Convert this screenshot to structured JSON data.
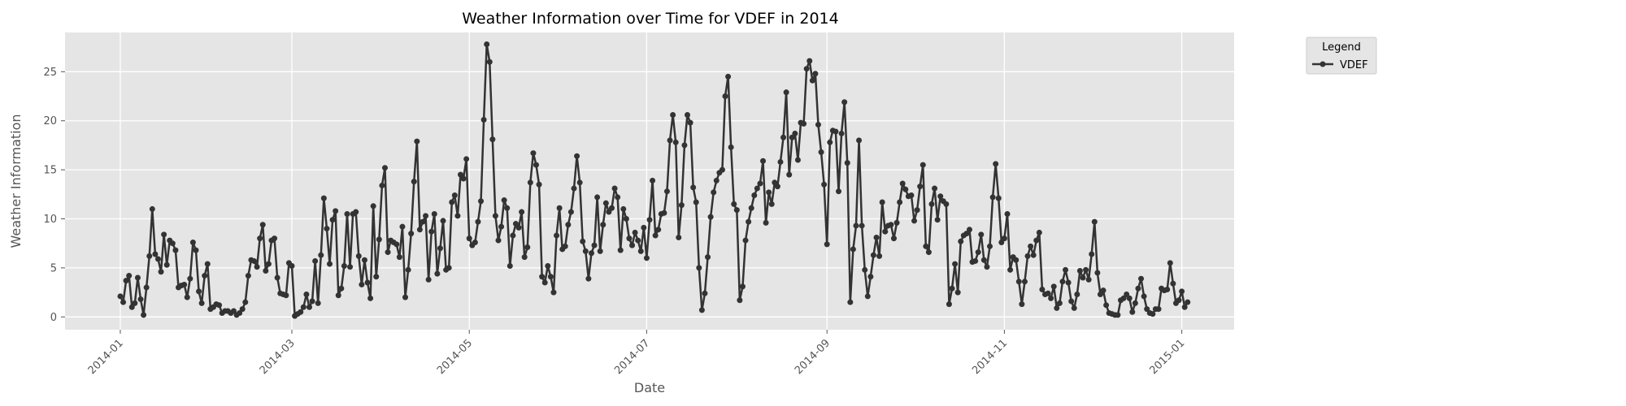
{
  "chart_data": {
    "type": "line",
    "title": "Weather Information over Time for VDEF in 2014",
    "xlabel": "Date",
    "ylabel": "Weather Information",
    "x_ticks": [
      "2014-01",
      "2014-03",
      "2014-05",
      "2014-07",
      "2014-09",
      "2014-11",
      "2015-01"
    ],
    "y_ticks": [
      0,
      5,
      10,
      15,
      20,
      25
    ],
    "xlim": [
      "2013-12-13",
      "2015-01-19"
    ],
    "ylim": [
      -1.3,
      29.0
    ],
    "grid": true,
    "legend": {
      "title": "Legend",
      "placement": "outside-top-right"
    },
    "series": [
      {
        "name": "VDEF",
        "color": "#333333",
        "x_start": "2014-01-01",
        "x_step": "1 day",
        "values": [
          2.1,
          1.5,
          3.7,
          4.2,
          1.0,
          1.4,
          4.0,
          1.8,
          0.2,
          3.0,
          6.2,
          11.0,
          6.4,
          5.9,
          4.6,
          8.4,
          5.3,
          7.8,
          7.5,
          6.8,
          3.0,
          3.2,
          3.3,
          2.0,
          3.9,
          7.6,
          6.8,
          2.6,
          1.4,
          4.2,
          5.4,
          0.8,
          1.0,
          1.3,
          1.2,
          0.4,
          0.6,
          0.6,
          0.4,
          0.6,
          0.2,
          0.4,
          0.8,
          1.5,
          4.2,
          5.8,
          5.7,
          5.1,
          8.0,
          9.4,
          4.7,
          5.4,
          7.8,
          8.0,
          4.0,
          2.4,
          2.3,
          2.2,
          5.5,
          5.2,
          0.1,
          0.3,
          0.5,
          1.0,
          2.3,
          1.0,
          1.6,
          5.7,
          1.4,
          6.3,
          12.1,
          9.0,
          5.4,
          9.9,
          10.8,
          2.2,
          2.9,
          5.2,
          10.5,
          5.1,
          10.5,
          10.7,
          6.2,
          3.3,
          5.8,
          3.5,
          1.9,
          11.3,
          4.1,
          7.9,
          13.4,
          15.2,
          6.6,
          7.8,
          7.6,
          7.4,
          6.1,
          9.2,
          2.0,
          4.8,
          8.5,
          13.8,
          17.9,
          8.9,
          9.7,
          10.3,
          3.8,
          8.7,
          10.5,
          4.4,
          7.0,
          9.8,
          4.8,
          5.0,
          11.7,
          12.4,
          10.3,
          14.5,
          14.1,
          16.1,
          8.0,
          7.3,
          7.6,
          9.7,
          11.8,
          20.1,
          27.8,
          26.0,
          18.1,
          10.3,
          7.8,
          9.2,
          11.9,
          11.1,
          5.2,
          8.3,
          9.5,
          9.1,
          10.7,
          6.1,
          7.1,
          13.7,
          16.7,
          15.5,
          13.5,
          4.1,
          3.5,
          5.2,
          4.1,
          2.5,
          8.3,
          11.1,
          6.9,
          7.2,
          9.4,
          10.7,
          13.1,
          16.4,
          13.7,
          7.7,
          6.7,
          3.9,
          6.5,
          7.3,
          12.2,
          6.7,
          9.4,
          11.6,
          10.7,
          11.1,
          13.1,
          12.2,
          6.8,
          11.0,
          10.0,
          8.0,
          7.3,
          8.6,
          7.8,
          6.7,
          9.1,
          6.0,
          9.9,
          13.9,
          8.3,
          8.9,
          10.5,
          10.6,
          12.8,
          18.0,
          20.6,
          17.8,
          8.1,
          11.4,
          17.5,
          20.6,
          19.8,
          13.2,
          11.7,
          5.0,
          0.7,
          2.4,
          6.1,
          10.2,
          12.7,
          13.9,
          14.7,
          15.0,
          22.5,
          24.5,
          17.3,
          11.5,
          10.9,
          1.7,
          3.1,
          7.8,
          9.7,
          11.1,
          12.4,
          13.1,
          13.6,
          15.9,
          9.6,
          12.7,
          11.5,
          13.7,
          13.3,
          15.8,
          18.3,
          22.9,
          14.5,
          18.3,
          18.7,
          16.0,
          19.8,
          19.7,
          25.3,
          26.1,
          24.1,
          24.8,
          19.6,
          16.8,
          13.5,
          7.4,
          17.8,
          19.0,
          18.9,
          12.8,
          18.7,
          21.9,
          15.7,
          1.5,
          6.9,
          9.3,
          18.0,
          9.3,
          4.8,
          2.1,
          4.1,
          6.3,
          8.1,
          6.2,
          11.7,
          8.7,
          9.3,
          9.4,
          8.0,
          9.6,
          11.7,
          13.6,
          13.0,
          12.3,
          12.4,
          9.8,
          10.9,
          13.3,
          15.5,
          7.2,
          6.6,
          11.5,
          13.1,
          9.9,
          12.3,
          11.8,
          11.5,
          1.3,
          2.9,
          5.4,
          2.5,
          7.7,
          8.3,
          8.5,
          8.9,
          5.6,
          5.7,
          6.6,
          8.4,
          5.8,
          5.1,
          7.2,
          12.2,
          15.6,
          12.1,
          7.6,
          8.0,
          10.5,
          4.8,
          6.1,
          5.8,
          3.6,
          1.3,
          3.6,
          6.2,
          7.2,
          6.3,
          7.8,
          8.6,
          2.8,
          2.3,
          2.4,
          1.9,
          3.1,
          0.9,
          1.4,
          3.6,
          4.8,
          3.5,
          1.6,
          0.9,
          2.3,
          4.7,
          4.0,
          4.8,
          3.8,
          6.4,
          9.7,
          4.5,
          2.3,
          2.7,
          1.2,
          0.4,
          0.3,
          0.2,
          0.2,
          1.7,
          1.9,
          2.3,
          1.9,
          0.5,
          1.4,
          2.9,
          3.9,
          2.1,
          0.8,
          0.4,
          0.3,
          0.8,
          0.8,
          2.9,
          2.7,
          2.8,
          5.5,
          3.4,
          1.4,
          1.7,
          2.6,
          1.0,
          1.5
        ]
      }
    ]
  }
}
